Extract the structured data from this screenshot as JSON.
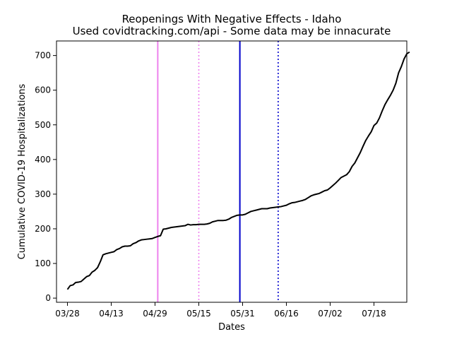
{
  "chart_data": {
    "type": "line",
    "title": "Reopenings With Negative Effects - Idaho",
    "subtitle": "Used covidtracking.com/api - Some data may be innacurate",
    "xlabel": "Dates",
    "ylabel": "Cumulative COVID-19 Hospitalizations",
    "x_ticks": [
      "03/28",
      "04/13",
      "04/29",
      "05/15",
      "05/31",
      "06/16",
      "07/02",
      "07/18"
    ],
    "y_ticks": [
      0,
      100,
      200,
      300,
      400,
      500,
      600,
      700
    ],
    "ylim": [
      -12,
      742
    ],
    "xlim": [
      "03/24",
      "07/30"
    ],
    "grid": false,
    "series": [
      {
        "color": "#000000",
        "points": [
          [
            "03/28",
            25
          ],
          [
            "03/29",
            36
          ],
          [
            "03/30",
            38
          ],
          [
            "03/31",
            45
          ],
          [
            "04/01",
            46
          ],
          [
            "04/02",
            48
          ],
          [
            "04/03",
            55
          ],
          [
            "04/04",
            62
          ],
          [
            "04/05",
            65
          ],
          [
            "04/06",
            75
          ],
          [
            "04/07",
            80
          ],
          [
            "04/08",
            88
          ],
          [
            "04/09",
            105
          ],
          [
            "04/10",
            125
          ],
          [
            "04/11",
            128
          ],
          [
            "04/12",
            130
          ],
          [
            "04/13",
            132
          ],
          [
            "04/14",
            134
          ],
          [
            "04/15",
            140
          ],
          [
            "04/16",
            143
          ],
          [
            "04/17",
            148
          ],
          [
            "04/18",
            150
          ],
          [
            "04/19",
            150
          ],
          [
            "04/20",
            151
          ],
          [
            "04/21",
            157
          ],
          [
            "04/22",
            160
          ],
          [
            "04/23",
            165
          ],
          [
            "04/24",
            168
          ],
          [
            "04/25",
            169
          ],
          [
            "04/26",
            170
          ],
          [
            "04/27",
            171
          ],
          [
            "04/28",
            172
          ],
          [
            "04/29",
            175
          ],
          [
            "04/30",
            178
          ],
          [
            "05/01",
            180
          ],
          [
            "05/02",
            199
          ],
          [
            "05/03",
            200
          ],
          [
            "05/04",
            202
          ],
          [
            "05/05",
            204
          ],
          [
            "05/06",
            205
          ],
          [
            "05/07",
            206
          ],
          [
            "05/08",
            207
          ],
          [
            "05/09",
            208
          ],
          [
            "05/10",
            209
          ],
          [
            "05/11",
            213
          ],
          [
            "05/12",
            211
          ],
          [
            "05/13",
            212
          ],
          [
            "05/14",
            212
          ],
          [
            "05/15",
            213
          ],
          [
            "05/16",
            213
          ],
          [
            "05/17",
            213
          ],
          [
            "05/18",
            214
          ],
          [
            "05/19",
            216
          ],
          [
            "05/20",
            220
          ],
          [
            "05/21",
            222
          ],
          [
            "05/22",
            224
          ],
          [
            "05/23",
            224
          ],
          [
            "05/24",
            224
          ],
          [
            "05/25",
            225
          ],
          [
            "05/26",
            228
          ],
          [
            "05/27",
            233
          ],
          [
            "05/28",
            236
          ],
          [
            "05/29",
            239
          ],
          [
            "05/30",
            240
          ],
          [
            "05/31",
            240
          ],
          [
            "06/01",
            242
          ],
          [
            "06/02",
            246
          ],
          [
            "06/03",
            250
          ],
          [
            "06/04",
            252
          ],
          [
            "06/05",
            254
          ],
          [
            "06/06",
            256
          ],
          [
            "06/07",
            258
          ],
          [
            "06/08",
            258
          ],
          [
            "06/09",
            258
          ],
          [
            "06/10",
            260
          ],
          [
            "06/11",
            261
          ],
          [
            "06/12",
            262
          ],
          [
            "06/13",
            263
          ],
          [
            "06/14",
            264
          ],
          [
            "06/15",
            266
          ],
          [
            "06/16",
            268
          ],
          [
            "06/17",
            272
          ],
          [
            "06/18",
            275
          ],
          [
            "06/19",
            276
          ],
          [
            "06/20",
            278
          ],
          [
            "06/21",
            280
          ],
          [
            "06/22",
            282
          ],
          [
            "06/23",
            285
          ],
          [
            "06/24",
            290
          ],
          [
            "06/25",
            295
          ],
          [
            "06/26",
            298
          ],
          [
            "06/27",
            300
          ],
          [
            "06/28",
            302
          ],
          [
            "06/29",
            306
          ],
          [
            "06/30",
            310
          ],
          [
            "07/01",
            312
          ],
          [
            "07/02",
            318
          ],
          [
            "07/03",
            325
          ],
          [
            "07/04",
            332
          ],
          [
            "07/05",
            340
          ],
          [
            "07/06",
            348
          ],
          [
            "07/07",
            352
          ],
          [
            "07/08",
            356
          ],
          [
            "07/09",
            365
          ],
          [
            "07/10",
            380
          ],
          [
            "07/11",
            390
          ],
          [
            "07/12",
            405
          ],
          [
            "07/13",
            420
          ],
          [
            "07/14",
            438
          ],
          [
            "07/15",
            455
          ],
          [
            "07/16",
            468
          ],
          [
            "07/17",
            480
          ],
          [
            "07/18",
            498
          ],
          [
            "07/19",
            505
          ],
          [
            "07/20",
            520
          ],
          [
            "07/21",
            540
          ],
          [
            "07/22",
            558
          ],
          [
            "07/23",
            572
          ],
          [
            "07/24",
            585
          ],
          [
            "07/25",
            600
          ],
          [
            "07/26",
            620
          ],
          [
            "07/27",
            650
          ],
          [
            "07/28",
            668
          ],
          [
            "07/29",
            690
          ],
          [
            "07/30",
            705
          ],
          [
            "07/31",
            710
          ]
        ]
      }
    ],
    "vertical_lines": [
      {
        "date": "04/30",
        "color": "#ee82ee",
        "style": "solid"
      },
      {
        "date": "05/15",
        "color": "#ee82ee",
        "style": "dotted"
      },
      {
        "date": "05/30",
        "color": "#0000cc",
        "style": "solid"
      },
      {
        "date": "06/13",
        "color": "#0000cc",
        "style": "dotted"
      }
    ]
  }
}
